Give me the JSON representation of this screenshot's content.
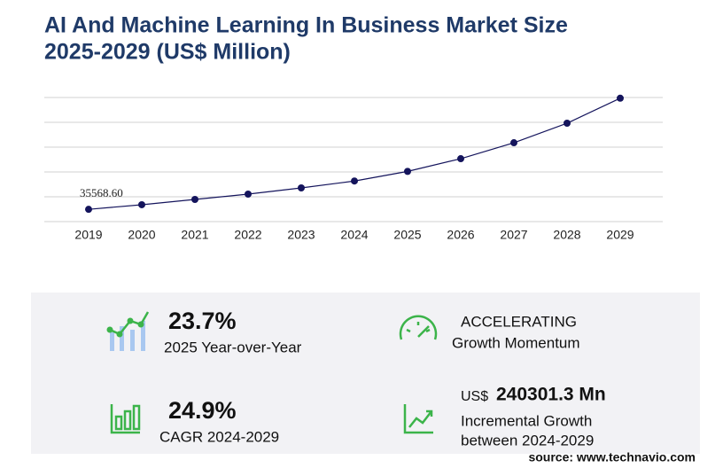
{
  "chart_data": {
    "type": "line",
    "title": "AI And Machine Learning In Business Market Size",
    "subtitle": "2025-2029 (US$ Million)",
    "categories": [
      "2019",
      "2020",
      "2021",
      "2022",
      "2023",
      "2024",
      "2025",
      "2026",
      "2027",
      "2028",
      "2029"
    ],
    "values": [
      35568.6,
      48900,
      64300,
      79700,
      97700,
      117700,
      145600,
      182500,
      228800,
      285400,
      358000
    ],
    "value_labels": [
      "35568.60",
      null,
      null,
      null,
      null,
      null,
      null,
      null,
      null,
      null,
      null
    ],
    "color": "#14145c",
    "ylim": [
      0,
      360000
    ],
    "yticks": [
      0,
      72000,
      144000,
      216000,
      288000,
      360000
    ],
    "grid": true
  },
  "stats": [
    {
      "value": "23.7%",
      "label": "2025 Year-over-Year"
    },
    {
      "value": "ACCELERATING",
      "label": "Growth Momentum"
    },
    {
      "value": "24.9%",
      "label": "CAGR 2024-2029"
    },
    {
      "prefix": "US$",
      "value": "240301.3 Mn",
      "label": "Incremental Growth",
      "label2": "between 2024-2029"
    }
  ],
  "source": "source: www.technavio.com"
}
